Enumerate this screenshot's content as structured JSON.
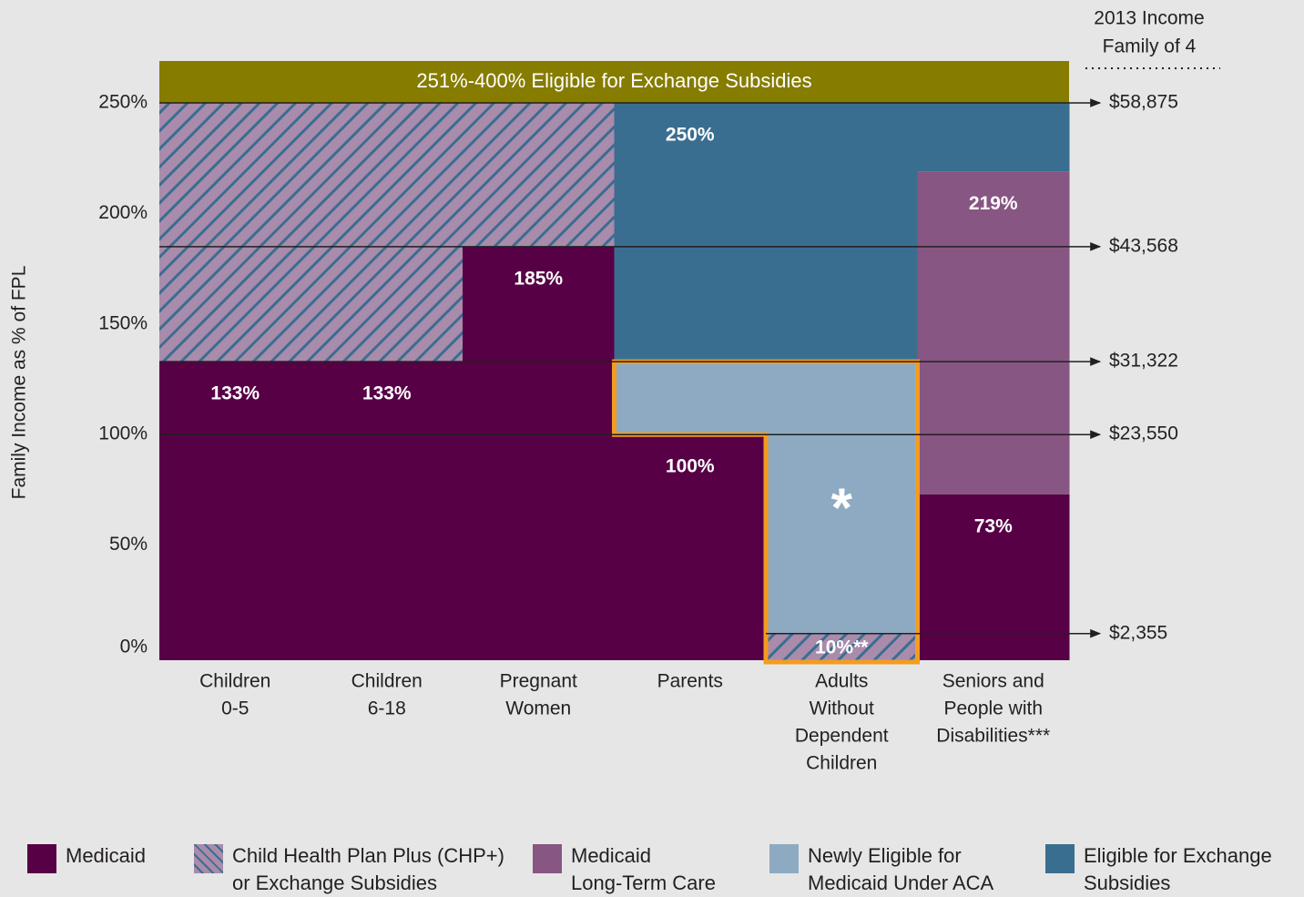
{
  "chart_data": {
    "type": "stacked_bar",
    "top_band": {
      "label": "251%-400% Eligible for Exchange Subsidies",
      "color": "#857c00"
    },
    "y_axis_label": "Family Income as % of FPL",
    "right_axis_title": [
      "2013 Income",
      "Family of 4"
    ],
    "categories": [
      [
        "Children",
        "0-5"
      ],
      [
        "Children",
        "6-18"
      ],
      [
        "Pregnant",
        "Women"
      ],
      [
        "Parents"
      ],
      [
        "Adults",
        "Without",
        "Dependent",
        "Children"
      ],
      [
        "Seniors and",
        "People with",
        "Disabilities***"
      ]
    ],
    "series": [
      {
        "name": [
          "Medicaid"
        ],
        "color": "#570046",
        "values": [
          133,
          133,
          185,
          100,
          0,
          73
        ]
      },
      {
        "name": [
          "Child Health Plan Plus (CHP+)",
          "or Exchange Subsidies"
        ],
        "color": "#a98bab",
        "hatch_color": "#3a6e90",
        "values": [
          117,
          117,
          65,
          0,
          10,
          0
        ]
      },
      {
        "name": [
          "Medicaid",
          "Long-Term Care"
        ],
        "color": "#875683",
        "values": [
          0,
          0,
          0,
          0,
          0,
          146
        ]
      },
      {
        "name": [
          "Newly Eligible for",
          "Medicaid Under ACA"
        ],
        "color": "#8eaac2",
        "values": [
          0,
          0,
          0,
          33,
          123,
          0
        ]
      },
      {
        "name": [
          "Eligible for Exchange",
          "Subsidies"
        ],
        "color": "#3a6e90",
        "values": [
          0,
          0,
          0,
          117,
          117,
          31
        ]
      }
    ],
    "annotations": [
      {
        "category": 0,
        "value": 133,
        "label": "133%"
      },
      {
        "category": 1,
        "value": 133,
        "label": "133%"
      },
      {
        "category": 2,
        "value": 185,
        "label": "185%"
      },
      {
        "category": 3,
        "value": 100,
        "label": "100%"
      },
      {
        "category": 3,
        "value": 250,
        "label": "250%"
      },
      {
        "category": 4,
        "value": 10,
        "label": "10%**"
      },
      {
        "category": 5,
        "value": 219,
        "label": "219%"
      },
      {
        "category": 5,
        "value": 73,
        "label": "73%"
      }
    ],
    "asterisk": "*",
    "income_lines": [
      {
        "value": 250,
        "label": "$58,875"
      },
      {
        "value": 185,
        "label": "$43,568"
      },
      {
        "value": 133,
        "label": "$31,322"
      },
      {
        "value": 100,
        "label": "$23,550"
      },
      {
        "value": 10,
        "label": "$2,355"
      }
    ],
    "ylim": [
      0,
      250
    ],
    "yticks": [
      {
        "value": 0,
        "label": "0%"
      },
      {
        "value": 50,
        "label": "50%"
      },
      {
        "value": 100,
        "label": "100%"
      },
      {
        "value": 150,
        "label": "150%"
      },
      {
        "value": 200,
        "label": "200%"
      },
      {
        "value": 250,
        "label": "250%"
      }
    ],
    "highlight_color": "#f39c1f"
  }
}
